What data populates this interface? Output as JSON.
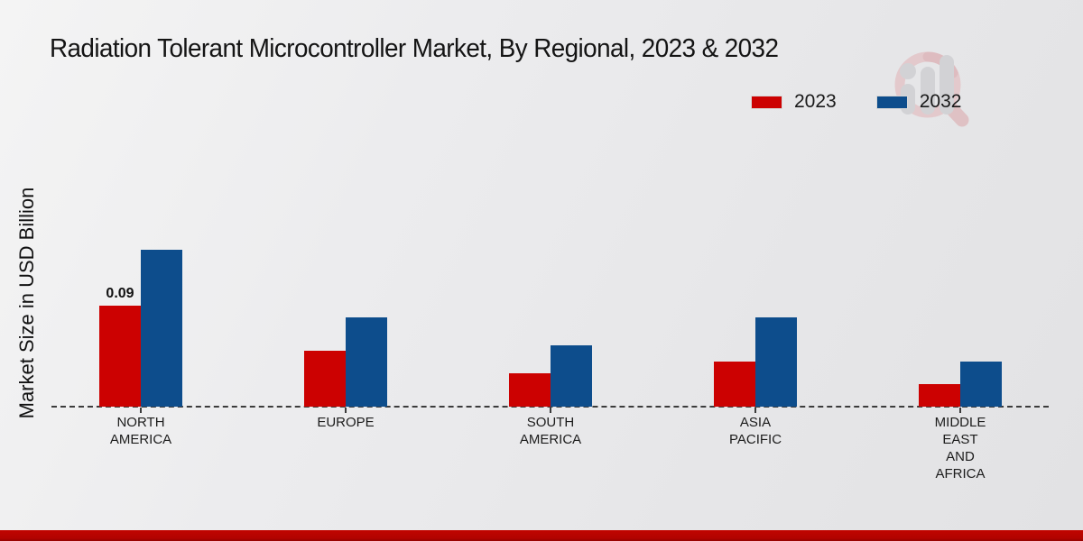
{
  "title": "Radiation Tolerant Microcontroller Market, By Regional, 2023 & 2032",
  "y_axis_label": "Market Size in USD Billion",
  "legend": {
    "position": "top-right",
    "items": [
      {
        "label": "2023",
        "color": "#cc0101"
      },
      {
        "label": "2032",
        "color": "#0d4d8c"
      }
    ]
  },
  "watermark_icon": "magnifier-bars-logo-icon",
  "colors": {
    "bar_2023": "#cc0101",
    "bar_2032": "#0d4d8c",
    "footer_bar": "#b80400",
    "axis": "#3c3c3c",
    "background": "#ebebed"
  },
  "chart_data": {
    "type": "bar",
    "categories": [
      "North America",
      "Europe",
      "South America",
      "Asia Pacific",
      "Middle East and Africa"
    ],
    "category_label_lines": [
      [
        "NORTH",
        "AMERICA"
      ],
      [
        "EUROPE"
      ],
      [
        "SOUTH",
        "AMERICA"
      ],
      [
        "ASIA",
        "PACIFIC"
      ],
      [
        "MIDDLE",
        "EAST",
        "AND",
        "AFRICA"
      ]
    ],
    "series": [
      {
        "name": "2023",
        "color": "#cc0101",
        "values": [
          0.09,
          0.05,
          0.03,
          0.04,
          0.02
        ]
      },
      {
        "name": "2032",
        "color": "#0d4d8c",
        "values": [
          0.14,
          0.08,
          0.055,
          0.08,
          0.04
        ]
      }
    ],
    "data_labels": [
      {
        "series": "2023",
        "category": "North America",
        "text": "0.09"
      }
    ],
    "xlabel": "",
    "ylabel": "Market Size in USD Billion",
    "ylim": [
      0,
      0.18
    ],
    "grid": false,
    "y_ticks_shown": false,
    "baseline_style": "dashed",
    "legend_position": "top-right"
  }
}
